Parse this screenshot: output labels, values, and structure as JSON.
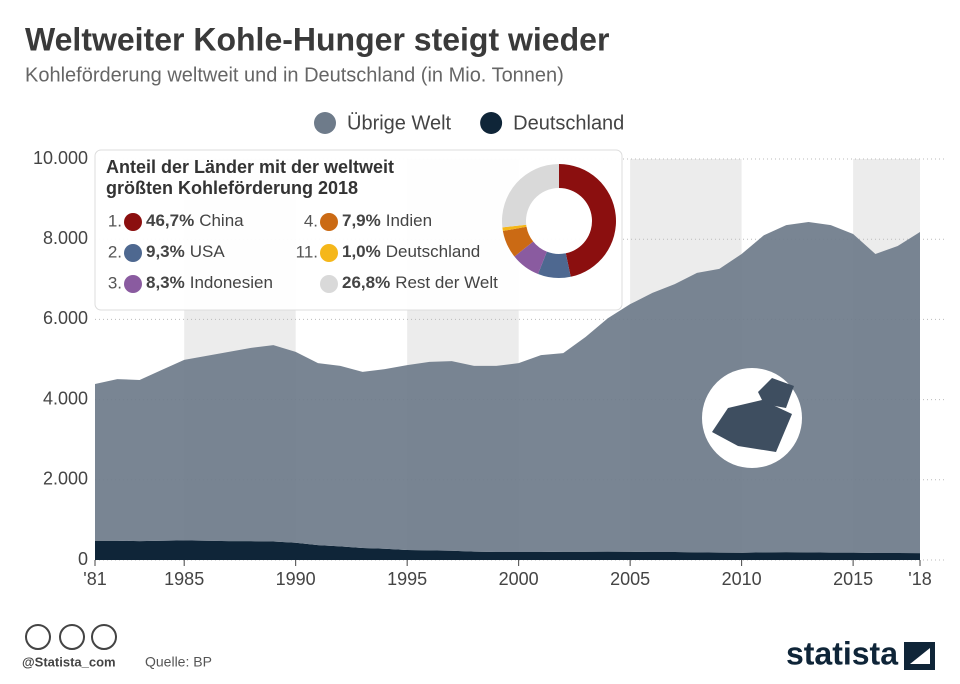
{
  "chart_data": [
    {
      "type": "area",
      "stacked": true,
      "title": "Weltweiter Kohle-Hunger steigt wieder",
      "subtitle": "Kohleförderung weltweit und in Deutschland (in Mio. Tonnen)",
      "x": [
        1981,
        1982,
        1983,
        1984,
        1985,
        1986,
        1987,
        1988,
        1989,
        1990,
        1991,
        1992,
        1993,
        1994,
        1995,
        1996,
        1997,
        1998,
        1999,
        2000,
        2001,
        2002,
        2003,
        2004,
        2005,
        2006,
        2007,
        2008,
        2009,
        2010,
        2011,
        2012,
        2013,
        2014,
        2015,
        2016,
        2017,
        2018
      ],
      "series": [
        {
          "name": "Übrige Welt",
          "color": "#6e7b8a",
          "values": [
            3910,
            4030,
            4020,
            4260,
            4500,
            4610,
            4720,
            4820,
            4900,
            4760,
            4540,
            4500,
            4390,
            4480,
            4610,
            4700,
            4730,
            4630,
            4640,
            4710,
            4910,
            4955,
            5355,
            5820,
            6175,
            6460,
            6680,
            6970,
            7075,
            7450,
            7910,
            8155,
            8240,
            8165,
            7945,
            7455,
            7655,
            8010
          ]
        },
        {
          "name": "Deutschland",
          "color": "#0f2538",
          "values": [
            480,
            480,
            470,
            480,
            490,
            480,
            470,
            470,
            460,
            430,
            370,
            340,
            300,
            280,
            250,
            240,
            230,
            210,
            200,
            200,
            200,
            205,
            205,
            210,
            205,
            200,
            200,
            190,
            185,
            180,
            190,
            195,
            190,
            185,
            185,
            175,
            175,
            170
          ]
        }
      ],
      "xlim": [
        1981,
        2018
      ],
      "xticks": [
        {
          "value": 1981,
          "label": "'81"
        },
        1985,
        1990,
        1995,
        2000,
        2005,
        2010,
        2015,
        {
          "value": 2018,
          "label": "'18"
        }
      ],
      "ylim": [
        0,
        10000
      ],
      "yticks": [
        0,
        {
          "value": 2000,
          "label": "2.000"
        },
        {
          "value": 4000,
          "label": "4.000"
        },
        {
          "value": 6000,
          "label": "6.000"
        },
        {
          "value": 8000,
          "label": "8.000"
        },
        {
          "value": 10000,
          "label": "10.000"
        }
      ],
      "grid": true,
      "legend": "top"
    },
    {
      "type": "donut",
      "title": "Anteil der Länder mit der weltweit größten Kohleförderung 2018",
      "ranks": [
        "1.",
        "2.",
        "3.",
        "4.",
        "11.",
        null
      ],
      "categories": [
        "China",
        "USA",
        "Indonesien",
        "Indien",
        "Deutschland",
        "Rest der Welt"
      ],
      "values": [
        46.7,
        9.3,
        8.3,
        7.9,
        1.0,
        26.8
      ],
      "value_labels": [
        "46,7%",
        "9,3%",
        "8,3%",
        "7,9%",
        "1,0%",
        "26,8%"
      ],
      "colors": [
        "#8b0f0f",
        "#4e6890",
        "#8a5ba0",
        "#cb6a14",
        "#f5b71a",
        "#d9d9d9"
      ]
    }
  ],
  "footer": {
    "handle": "@Statista_com",
    "source": "Quelle: BP",
    "brand": "statista"
  }
}
